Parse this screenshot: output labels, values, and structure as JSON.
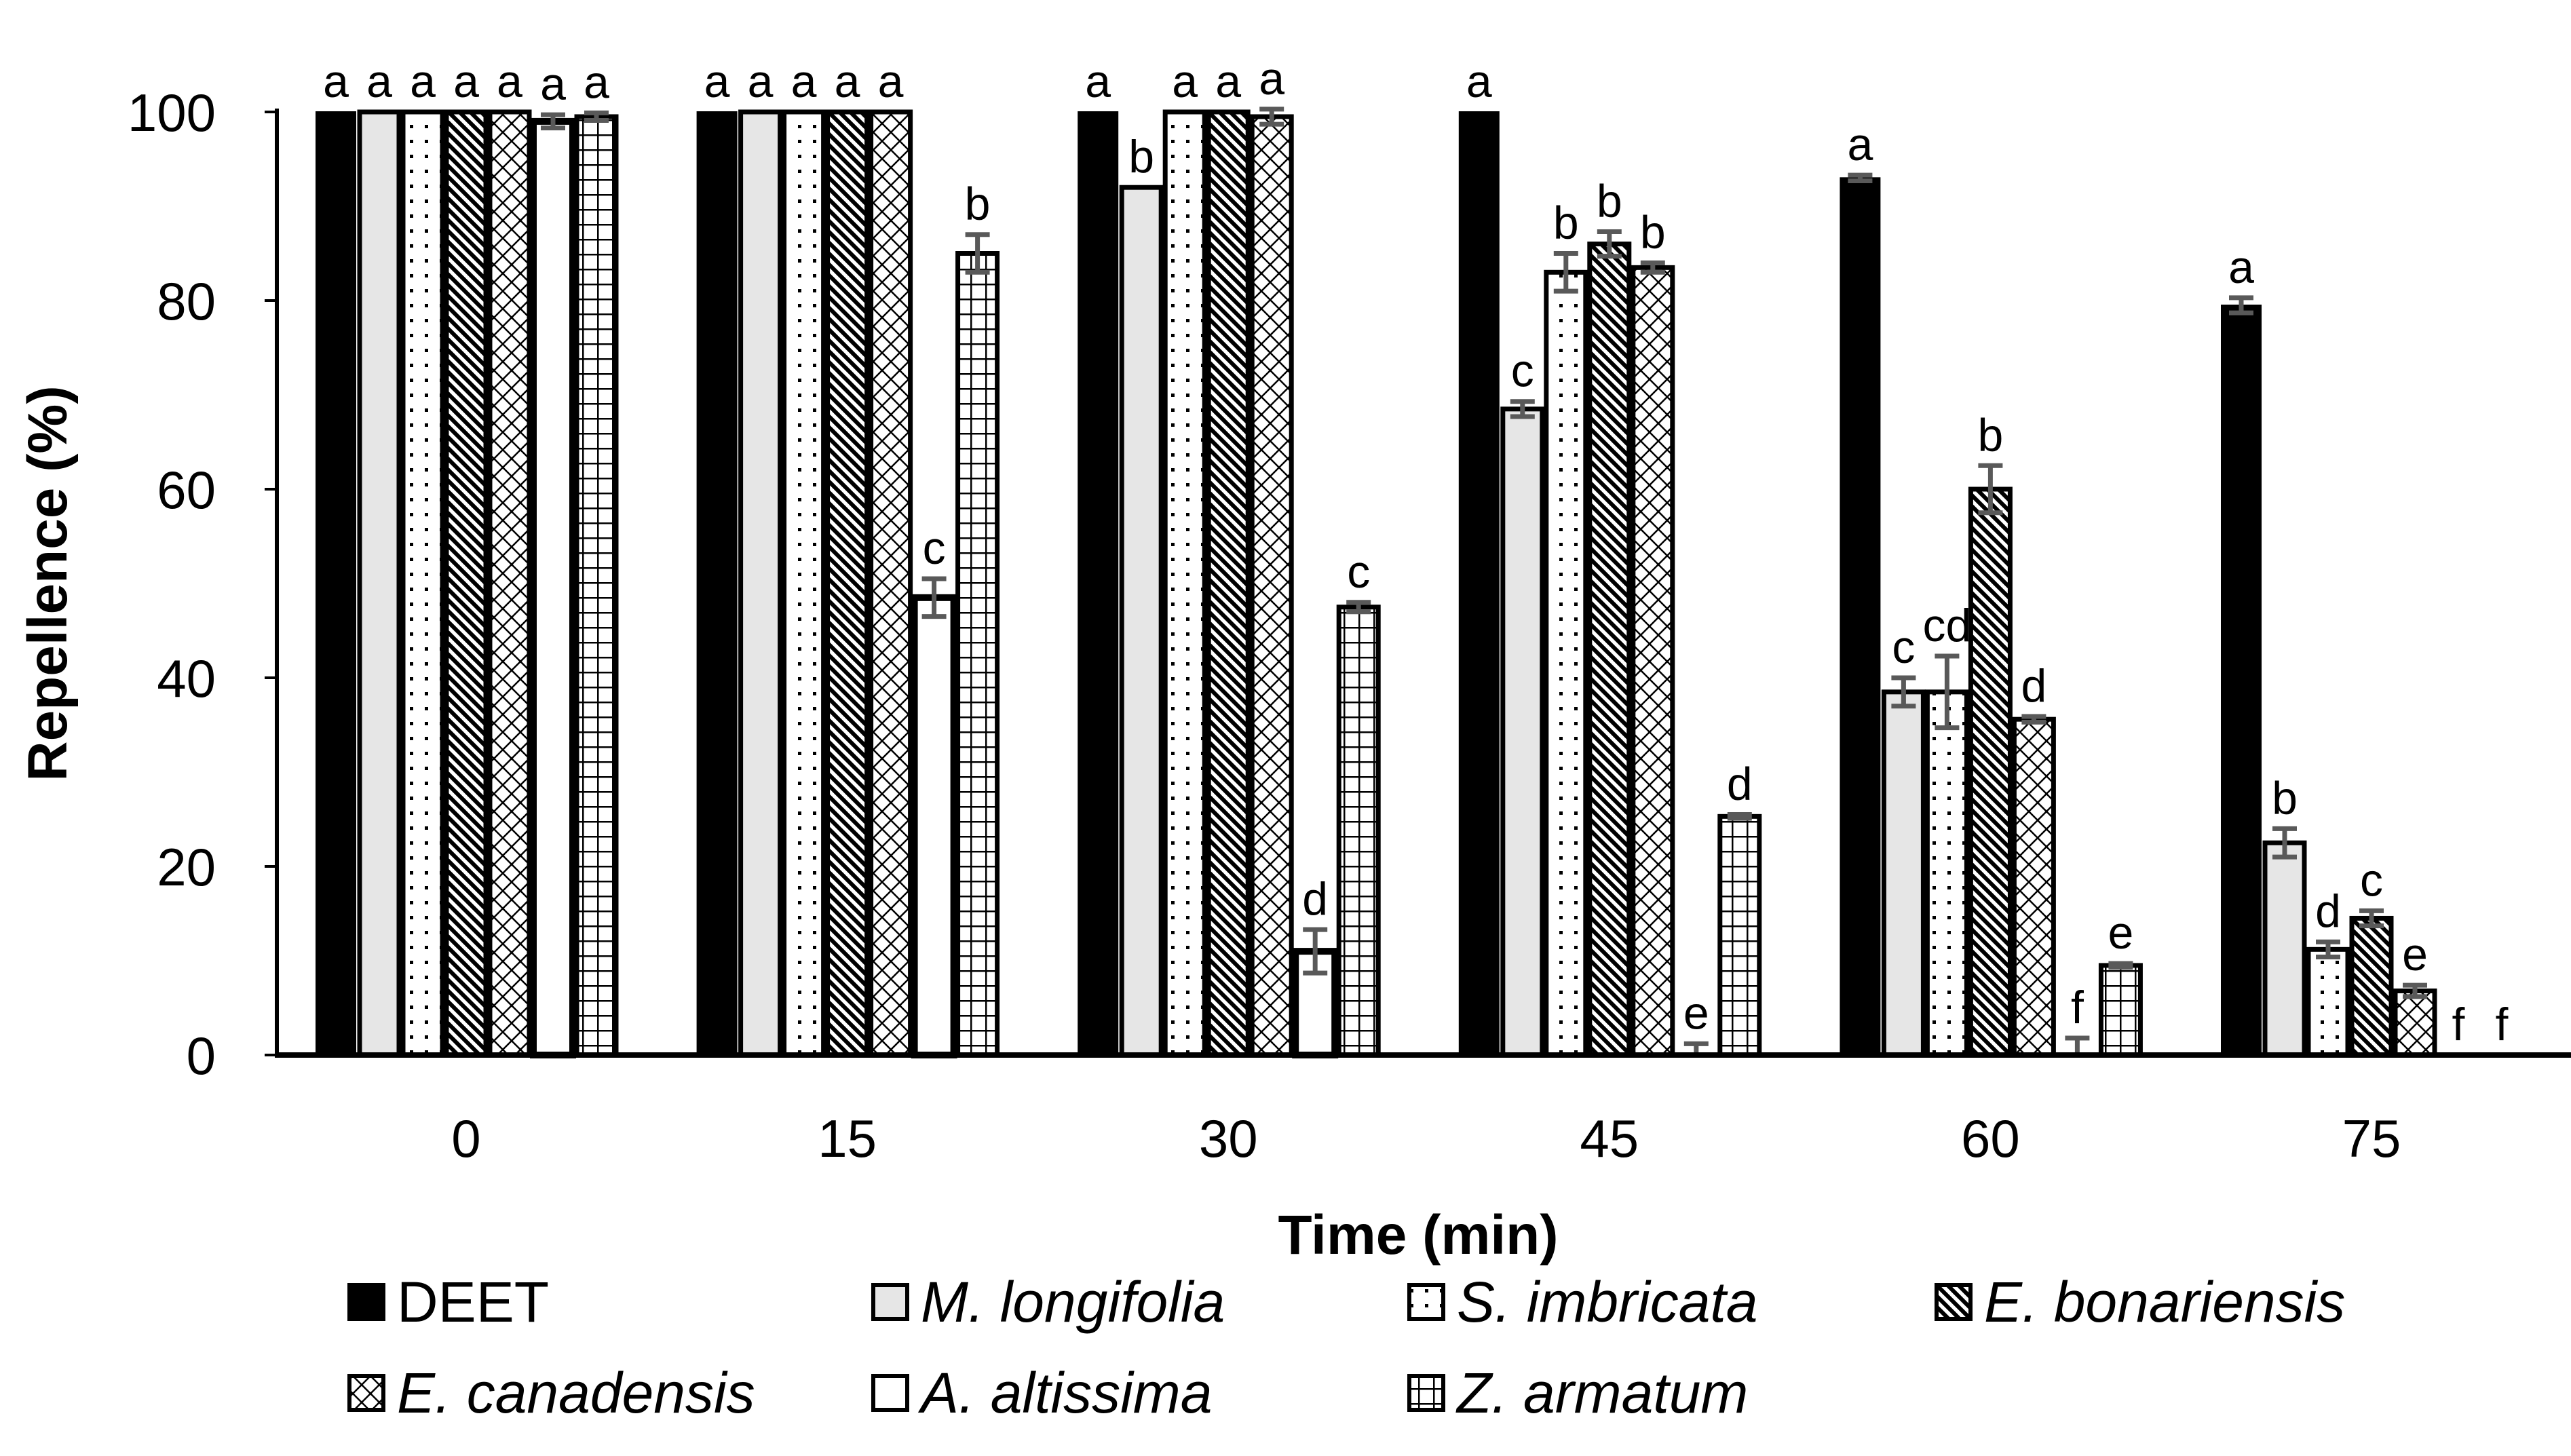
{
  "chart_data": {
    "type": "bar",
    "title": "",
    "xlabel": "Time (min)",
    "ylabel": "Repellence (%)",
    "ylim": [
      0,
      100
    ],
    "yticks": [
      "0",
      "20",
      "40",
      "60",
      "80",
      "100"
    ],
    "categories": [
      "0",
      "15",
      "30",
      "45",
      "60",
      "75"
    ],
    "legend_placement": "bottom",
    "series": [
      {
        "name": "DEET",
        "pattern": "solid-black",
        "values": [
          100,
          100,
          100,
          100,
          93,
          79.5
        ],
        "errors": [
          0,
          0,
          0,
          0,
          0.3,
          0.8
        ],
        "letters": [
          "a",
          "a",
          "a",
          "a",
          "a",
          "a"
        ]
      },
      {
        "name": "M. longifolia",
        "pattern": "light-gray",
        "values": [
          100,
          100,
          92,
          68.5,
          38.5,
          22.5
        ],
        "errors": [
          0,
          0,
          0,
          0.8,
          1.5,
          1.5
        ],
        "letters": [
          "a",
          "a",
          "b",
          "c",
          "c",
          "b"
        ]
      },
      {
        "name": "S. imbricata",
        "pattern": "dots",
        "values": [
          100,
          100,
          100,
          83,
          38.5,
          11.2
        ],
        "errors": [
          0,
          0,
          0,
          2,
          3.8,
          0.8
        ],
        "letters": [
          "a",
          "a",
          "a",
          "b",
          "cd",
          "d"
        ]
      },
      {
        "name": "E. bonariensis",
        "pattern": "diagonal",
        "values": [
          100,
          100,
          100,
          86,
          60,
          14.5
        ],
        "errors": [
          0,
          0,
          0,
          1.3,
          2.5,
          0.8
        ],
        "letters": [
          "a",
          "a",
          "a",
          "b",
          "b",
          "c"
        ]
      },
      {
        "name": "E. canadensis",
        "pattern": "crosshatch",
        "values": [
          100,
          100,
          99.5,
          83.5,
          35.6,
          6.8
        ],
        "errors": [
          0,
          0,
          0.8,
          0.5,
          0.3,
          0.6
        ],
        "letters": [
          "a",
          "a",
          "a",
          "b",
          "d",
          "e"
        ]
      },
      {
        "name": "A. altissima",
        "pattern": "white",
        "values": [
          99,
          48.5,
          11,
          0,
          0,
          0
        ],
        "errors": [
          0.7,
          2,
          2.3,
          1.2,
          1.8,
          0
        ],
        "letters": [
          "a",
          "c",
          "d",
          "e",
          "f",
          "f"
        ]
      },
      {
        "name": "Z. armatum",
        "pattern": "grid",
        "values": [
          99.5,
          85,
          47.5,
          25.3,
          9.5,
          0
        ],
        "errors": [
          0.4,
          2,
          0.5,
          0.2,
          0.2,
          0
        ],
        "letters": [
          "a",
          "b",
          "c",
          "d",
          "e",
          "f"
        ]
      }
    ]
  }
}
